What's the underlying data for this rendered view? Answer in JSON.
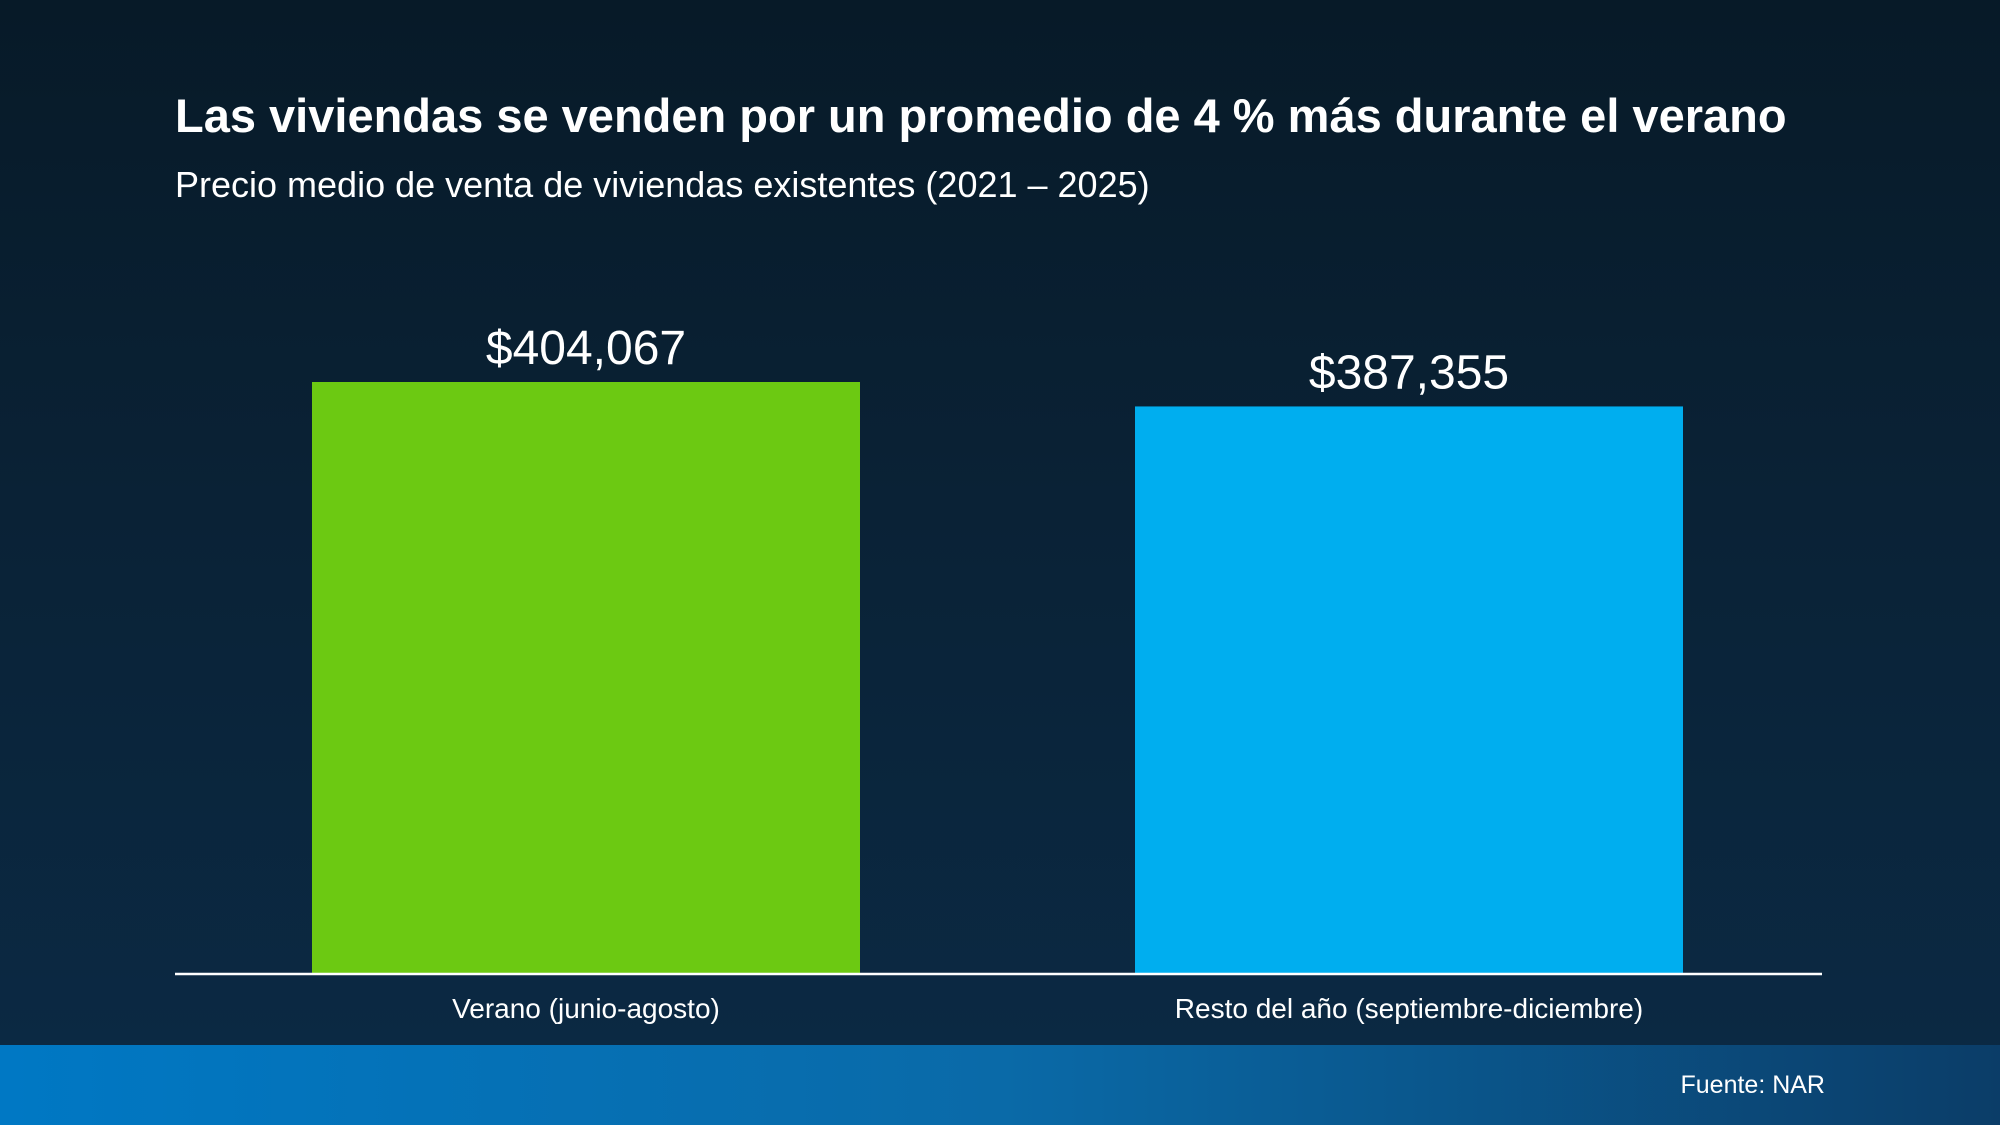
{
  "chart_data": {
    "type": "bar",
    "title": "Las viviendas se venden por un promedio de 4 % más durante el verano",
    "subtitle": "Precio medio de venta de viviendas existentes (2021 – 2025)",
    "categories": [
      "Verano (junio-agosto)",
      "Resto del año (septiembre-diciembre)"
    ],
    "values": [
      404067,
      387355
    ],
    "value_labels": [
      "$404,067",
      "$387,355"
    ],
    "colors": [
      "#6cc912",
      "#00aeef"
    ],
    "ylim": [
      0,
      404067
    ],
    "grid": false,
    "xlabel": "",
    "ylabel": ""
  },
  "footer": {
    "source": "Fuente: NAR"
  }
}
